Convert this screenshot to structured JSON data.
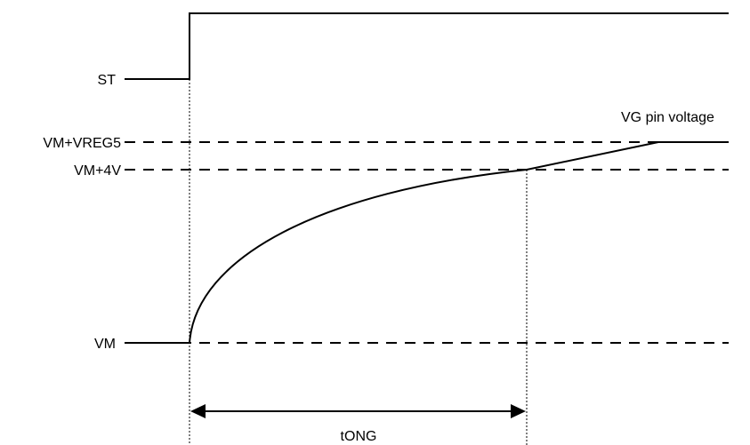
{
  "diagram": {
    "signal_label": "ST",
    "levels": {
      "vreg5": "VM+VREG5",
      "vm4v": "VM+4V",
      "vm": "VM"
    },
    "curve_label": "VG pin voltage",
    "interval_label": "tONG"
  }
}
